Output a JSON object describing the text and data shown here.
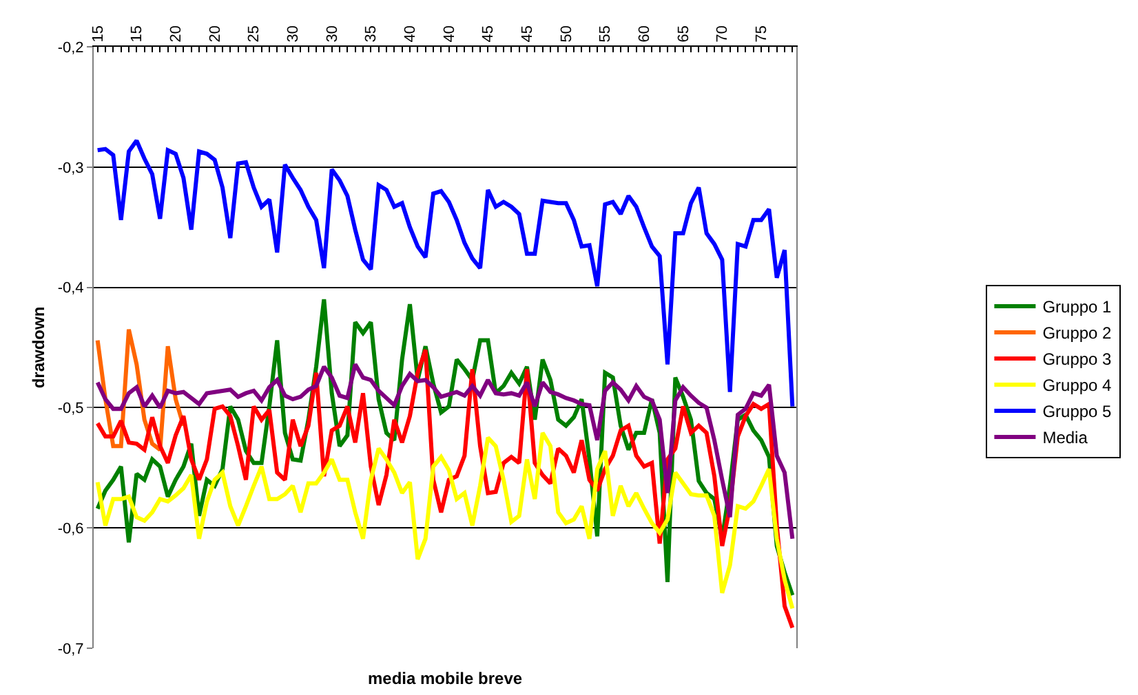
{
  "chart_data": {
    "type": "line",
    "xlabel": "media mobile breve",
    "ylabel": "drawdown",
    "categories": [
      "15",
      null,
      null,
      null,
      null,
      "15",
      null,
      null,
      null,
      null,
      "20",
      null,
      null,
      null,
      null,
      "20",
      null,
      null,
      null,
      null,
      "25",
      null,
      null,
      null,
      null,
      "30",
      null,
      null,
      null,
      null,
      "30",
      null,
      null,
      null,
      null,
      "35",
      null,
      null,
      null,
      null,
      "40",
      null,
      null,
      null,
      null,
      "40",
      null,
      null,
      null,
      null,
      "45",
      null,
      null,
      null,
      null,
      "45",
      null,
      null,
      null,
      null,
      "50",
      null,
      null,
      null,
      null,
      "55",
      null,
      null,
      null,
      null,
      "60",
      null,
      null,
      null,
      null,
      "65",
      null,
      null,
      null,
      null,
      "70",
      null,
      null,
      null,
      null,
      "75",
      null,
      null,
      null,
      null
    ],
    "ylim": [
      -0.7,
      -0.2
    ],
    "yticks": [
      {
        "value": -0.2,
        "label": "-0,2"
      },
      {
        "value": -0.3,
        "label": "-0,3"
      },
      {
        "value": -0.4,
        "label": "-0,4"
      },
      {
        "value": -0.5,
        "label": "-0,5"
      },
      {
        "value": -0.6,
        "label": "-0,6"
      },
      {
        "value": -0.7,
        "label": "-0,7"
      }
    ],
    "grid": "y",
    "legend": "right",
    "marker": "none",
    "line_style": "solid",
    "series": [
      {
        "name": "Gruppo 1",
        "color": "#008000",
        "values": [
          -0.584,
          -0.569,
          -0.56,
          -0.549,
          -0.612,
          -0.555,
          -0.56,
          -0.543,
          -0.549,
          -0.574,
          -0.56,
          -0.549,
          -0.53,
          -0.59,
          -0.56,
          -0.565,
          -0.551,
          -0.499,
          -0.51,
          -0.536,
          -0.546,
          -0.546,
          -0.499,
          -0.444,
          -0.521,
          -0.543,
          -0.544,
          -0.51,
          -0.466,
          -0.41,
          -0.488,
          -0.532,
          -0.523,
          -0.429,
          -0.438,
          -0.429,
          -0.493,
          -0.521,
          -0.527,
          -0.46,
          -0.414,
          -0.477,
          -0.449,
          -0.48,
          -0.504,
          -0.499,
          -0.46,
          -0.468,
          -0.477,
          -0.444,
          -0.444,
          -0.488,
          -0.482,
          -0.471,
          -0.48,
          -0.466,
          -0.51,
          -0.46,
          -0.477,
          -0.51,
          -0.515,
          -0.508,
          -0.493,
          -0.543,
          -0.607,
          -0.471,
          -0.475,
          -0.515,
          -0.535,
          -0.521,
          -0.521,
          -0.493,
          -0.521,
          -0.645,
          -0.475,
          -0.491,
          -0.51,
          -0.561,
          -0.571,
          -0.576,
          -0.609,
          -0.565,
          -0.51,
          -0.506,
          -0.519,
          -0.527,
          -0.541,
          -0.615,
          -0.637,
          -0.656
        ]
      },
      {
        "name": "Gruppo 2",
        "color": "#ff6600",
        "values": [
          -0.444,
          -0.493,
          -0.532,
          -0.532,
          -0.435,
          -0.464,
          -0.51,
          -0.53,
          -0.535,
          -0.449,
          -0.493,
          -0.515,
          null,
          null,
          null,
          null,
          null,
          null,
          null,
          null,
          null,
          null,
          null,
          null,
          null,
          null,
          null,
          null,
          null,
          null,
          null,
          null,
          null,
          null,
          null,
          null,
          null,
          null,
          null,
          null,
          null,
          null,
          null,
          null,
          null,
          null,
          null,
          null,
          null,
          null,
          null,
          null,
          null,
          null,
          null,
          null,
          null,
          null,
          null,
          null,
          null,
          null,
          null,
          null,
          null,
          null,
          null,
          null,
          null,
          null,
          null,
          null,
          null,
          null,
          null,
          null,
          null,
          null,
          null,
          null,
          null,
          null,
          null,
          null,
          null,
          null,
          null,
          null,
          null,
          null
        ]
      },
      {
        "name": "Gruppo 3",
        "color": "#ff0000",
        "values": [
          -0.513,
          -0.524,
          -0.524,
          -0.511,
          -0.529,
          -0.53,
          -0.535,
          -0.508,
          -0.532,
          -0.546,
          -0.523,
          -0.507,
          -0.543,
          -0.56,
          -0.543,
          -0.501,
          -0.499,
          -0.507,
          -0.532,
          -0.56,
          -0.499,
          -0.51,
          -0.502,
          -0.554,
          -0.56,
          -0.51,
          -0.532,
          -0.515,
          -0.471,
          -0.557,
          -0.519,
          -0.515,
          -0.499,
          -0.529,
          -0.488,
          -0.549,
          -0.581,
          -0.556,
          -0.51,
          -0.529,
          -0.507,
          -0.471,
          -0.452,
          -0.56,
          -0.587,
          -0.56,
          -0.557,
          -0.54,
          -0.468,
          -0.532,
          -0.571,
          -0.57,
          -0.546,
          -0.541,
          -0.546,
          -0.468,
          -0.546,
          -0.556,
          -0.563,
          -0.534,
          -0.54,
          -0.554,
          -0.527,
          -0.56,
          -0.569,
          -0.551,
          -0.54,
          -0.519,
          -0.515,
          -0.54,
          -0.549,
          -0.546,
          -0.613,
          -0.543,
          -0.534,
          -0.499,
          -0.521,
          -0.515,
          -0.521,
          -0.557,
          -0.615,
          -0.582,
          -0.524,
          -0.507,
          -0.497,
          -0.501,
          -0.497,
          -0.598,
          -0.665,
          -0.683
        ]
      },
      {
        "name": "Gruppo 4",
        "color": "#ffff00",
        "values": [
          -0.562,
          -0.598,
          -0.576,
          -0.576,
          -0.574,
          -0.591,
          -0.594,
          -0.587,
          -0.576,
          -0.578,
          -0.573,
          -0.567,
          -0.556,
          -0.609,
          -0.578,
          -0.56,
          -0.554,
          -0.582,
          -0.598,
          -0.582,
          -0.565,
          -0.549,
          -0.576,
          -0.576,
          -0.572,
          -0.565,
          -0.587,
          -0.563,
          -0.563,
          -0.554,
          -0.543,
          -0.56,
          -0.56,
          -0.587,
          -0.609,
          -0.56,
          -0.534,
          -0.543,
          -0.554,
          -0.571,
          -0.562,
          -0.626,
          -0.609,
          -0.549,
          -0.541,
          -0.552,
          -0.576,
          -0.571,
          -0.598,
          -0.565,
          -0.525,
          -0.532,
          -0.56,
          -0.595,
          -0.59,
          -0.543,
          -0.576,
          -0.521,
          -0.532,
          -0.587,
          -0.596,
          -0.593,
          -0.582,
          -0.609,
          -0.551,
          -0.536,
          -0.59,
          -0.565,
          -0.582,
          -0.571,
          -0.584,
          -0.596,
          -0.604,
          -0.593,
          -0.554,
          -0.563,
          -0.572,
          -0.573,
          -0.573,
          -0.59,
          -0.654,
          -0.631,
          -0.582,
          -0.584,
          -0.578,
          -0.565,
          -0.551,
          -0.609,
          -0.643,
          -0.667
        ]
      },
      {
        "name": "Gruppo 5",
        "color": "#0000ff",
        "values": [
          -0.286,
          -0.285,
          -0.29,
          -0.344,
          -0.287,
          -0.278,
          -0.293,
          -0.306,
          -0.343,
          -0.286,
          -0.289,
          -0.309,
          -0.352,
          -0.287,
          -0.289,
          -0.294,
          -0.317,
          -0.359,
          -0.297,
          -0.296,
          -0.317,
          -0.333,
          -0.327,
          -0.371,
          -0.298,
          -0.309,
          -0.319,
          -0.333,
          -0.344,
          -0.384,
          -0.302,
          -0.311,
          -0.324,
          -0.352,
          -0.377,
          -0.385,
          -0.315,
          -0.319,
          -0.333,
          -0.33,
          -0.35,
          -0.366,
          -0.375,
          -0.322,
          -0.32,
          -0.329,
          -0.344,
          -0.363,
          -0.376,
          -0.384,
          -0.319,
          -0.333,
          -0.329,
          -0.333,
          -0.339,
          -0.372,
          -0.372,
          -0.328,
          -0.329,
          -0.33,
          -0.33,
          -0.344,
          -0.366,
          -0.365,
          -0.399,
          -0.331,
          -0.329,
          -0.339,
          -0.324,
          -0.333,
          -0.35,
          -0.366,
          -0.374,
          -0.464,
          -0.355,
          -0.355,
          -0.33,
          -0.317,
          -0.355,
          -0.364,
          -0.377,
          -0.487,
          -0.364,
          -0.366,
          -0.344,
          -0.344,
          -0.335,
          -0.392,
          -0.369,
          -0.499
        ]
      },
      {
        "name": "Media",
        "color": "#800080",
        "values": [
          -0.479,
          -0.493,
          -0.501,
          -0.501,
          -0.488,
          -0.483,
          -0.499,
          -0.49,
          -0.5,
          -0.486,
          -0.488,
          -0.487,
          -0.492,
          -0.497,
          -0.488,
          -0.487,
          -0.486,
          -0.485,
          -0.491,
          -0.488,
          -0.486,
          -0.494,
          -0.483,
          -0.477,
          -0.49,
          -0.493,
          -0.491,
          -0.485,
          -0.482,
          -0.466,
          -0.475,
          -0.49,
          -0.492,
          -0.464,
          -0.475,
          -0.477,
          -0.486,
          -0.492,
          -0.498,
          -0.482,
          -0.472,
          -0.478,
          -0.477,
          -0.483,
          -0.491,
          -0.489,
          -0.487,
          -0.49,
          -0.482,
          -0.49,
          -0.477,
          -0.488,
          -0.489,
          -0.488,
          -0.49,
          -0.479,
          -0.499,
          -0.479,
          -0.487,
          -0.489,
          -0.492,
          -0.494,
          -0.497,
          -0.498,
          -0.527,
          -0.486,
          -0.479,
          -0.485,
          -0.494,
          -0.482,
          -0.491,
          -0.494,
          -0.51,
          -0.571,
          -0.494,
          -0.483,
          -0.49,
          -0.496,
          -0.5,
          -0.527,
          -0.56,
          -0.591,
          -0.506,
          -0.501,
          -0.488,
          -0.49,
          -0.481,
          -0.54,
          -0.554,
          -0.609
        ]
      }
    ]
  }
}
